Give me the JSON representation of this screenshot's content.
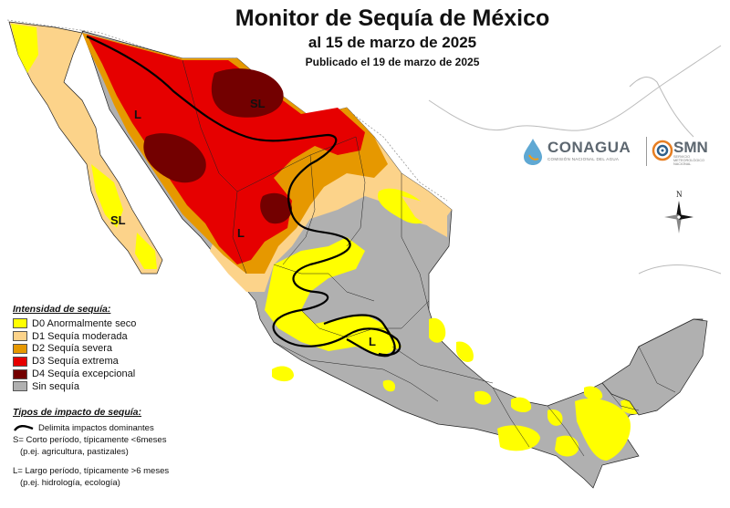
{
  "header": {
    "title": "Monitor de Sequía de México",
    "date_line": "al 15 de marzo de 2025",
    "published": "Publicado el 19 de marzo de 2025"
  },
  "legend": {
    "title": "Intensidad de sequía:",
    "items": [
      {
        "label": "D0 Anormalmente seco",
        "color": "#ffff00"
      },
      {
        "label": "D1 Sequía moderada",
        "color": "#fcd38a"
      },
      {
        "label": "D2 Sequía severa",
        "color": "#e69800"
      },
      {
        "label": "D3 Sequía extrema",
        "color": "#e60000"
      },
      {
        "label": "D4 Sequía excepcional",
        "color": "#730000"
      },
      {
        "label": "Sin sequía",
        "color": "#b0b0b0"
      }
    ]
  },
  "impacts": {
    "title": "Tipos de impacto de sequía:",
    "boundary_label": "Delimita impactos dominantes",
    "short_line1": "S= Corto período, típicamente <6meses",
    "short_line2": "(p.ej. agricultura, pastizales)",
    "long_line1": "L= Largo período, típicamente >6 meses",
    "long_line2": "(p.ej. hidrología, ecología)"
  },
  "map_labels": {
    "l_north": "L",
    "sl_north": "SL",
    "sl_baja": "SL",
    "l_west": "L",
    "l_central": "L"
  },
  "logos": {
    "conagua": "CONAGUA",
    "conagua_sub": "COMISIÓN NACIONAL DEL AGUA",
    "smn": "SMN",
    "smn_sub": "SERVICIO METEOROLÓGICO NACIONAL"
  },
  "compass_label": "N"
}
